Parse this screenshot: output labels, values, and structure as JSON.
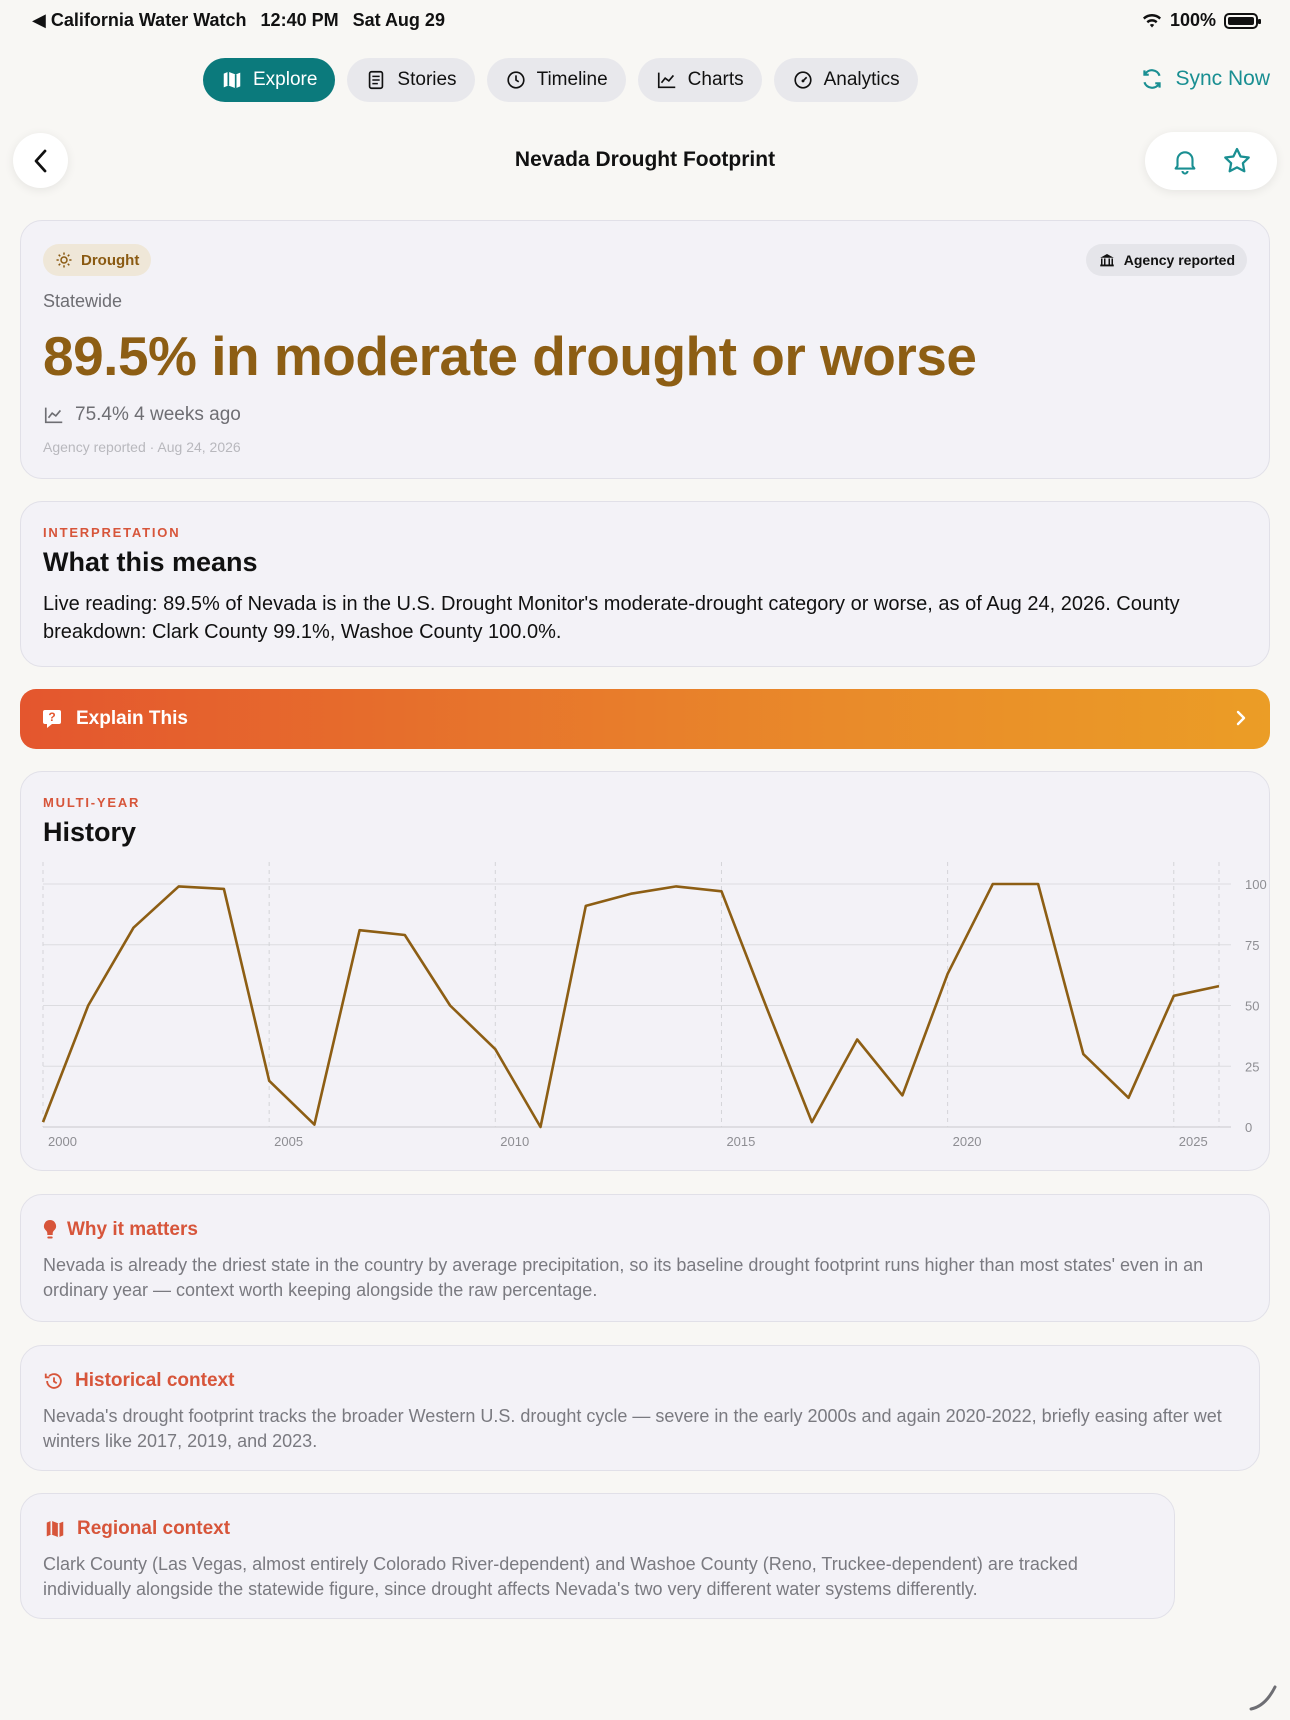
{
  "status": {
    "back_app": "◀ California Water Watch",
    "time": "12:40 PM",
    "date": "Sat Aug 29",
    "battery": "100%"
  },
  "tabs": [
    {
      "label": "Explore",
      "icon": "map-icon",
      "active": true
    },
    {
      "label": "Stories",
      "icon": "document-icon",
      "active": false
    },
    {
      "label": "Timeline",
      "icon": "clock-icon",
      "active": false
    },
    {
      "label": "Charts",
      "icon": "line-chart-icon",
      "active": false
    },
    {
      "label": "Analytics",
      "icon": "gauge-icon",
      "active": false
    }
  ],
  "sync_label": "Sync Now",
  "page_title": "Nevada Drought Footprint",
  "metric": {
    "category_chip": "Drought",
    "source_chip": "Agency reported",
    "location": "Statewide",
    "headline": "89.5% in moderate drought or worse",
    "previous": "75.4% 4 weeks ago",
    "reported": "Agency reported · Aug 24, 2026"
  },
  "interpretation": {
    "eyebrow": "INTERPRETATION",
    "title": "What this means",
    "body": "Live reading: 89.5% of Nevada is in the U.S. Drought Monitor's moderate-drought category or worse, as of Aug 24, 2026. County breakdown: Clark County 99.1%, Washoe County 100.0%."
  },
  "explain_label": "Explain This",
  "history": {
    "eyebrow": "MULTI-YEAR",
    "title": "History"
  },
  "chart_data": {
    "type": "line",
    "title": "",
    "xlabel": "",
    "ylabel": "",
    "x_ticks": [
      "2000",
      "2005",
      "2010",
      "2015",
      "2020",
      "2025"
    ],
    "y_ticks": [
      "0",
      "25",
      "50",
      "75",
      "100"
    ],
    "ylim": [
      0,
      100
    ],
    "xlim": [
      2000,
      2026
    ],
    "grid": true,
    "color": "#8d5e14",
    "x": [
      2000,
      2001,
      2002,
      2003,
      2004,
      2005,
      2006,
      2007,
      2008,
      2009,
      2010,
      2011,
      2012,
      2013,
      2014,
      2015,
      2016,
      2017,
      2018,
      2019,
      2020,
      2021,
      2022,
      2023,
      2024,
      2025,
      2026
    ],
    "values": [
      2,
      50,
      82,
      99,
      98,
      19,
      1,
      81,
      79,
      50,
      32,
      0,
      91,
      96,
      99,
      97,
      49,
      2,
      36,
      13,
      63,
      100,
      100,
      30,
      12,
      54,
      58
    ]
  },
  "why": {
    "title": "Why it matters",
    "body": "Nevada is already the driest state in the country by average precipitation, so its baseline drought footprint runs higher than most states' even in an ordinary year — context worth keeping alongside the raw percentage."
  },
  "historical": {
    "title": "Historical context",
    "body": "Nevada's drought footprint tracks the broader Western U.S. drought cycle — severe in the early 2000s and again 2020-2022, briefly easing after wet winters like 2017, 2019, and 2023."
  },
  "regional": {
    "title": "Regional context",
    "body": "Clark County (Las Vegas, almost entirely Colorado River-dependent) and Washoe County (Reno, Truckee-dependent) are tracked individually alongside the statewide figure, since drought affects Nevada's two very different water systems differently."
  }
}
